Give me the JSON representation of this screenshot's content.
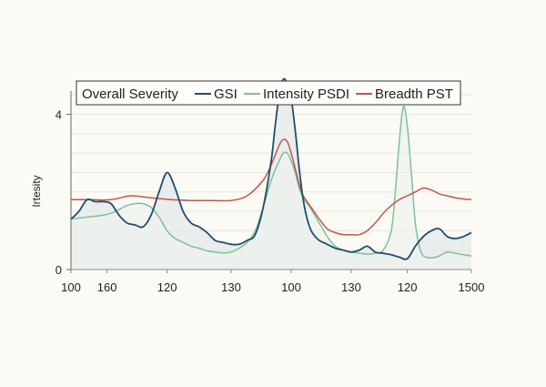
{
  "chart_data": {
    "type": "line",
    "title": "",
    "xlabel": "",
    "ylabel": "Irtesity",
    "ylim": [
      0,
      4.6
    ],
    "xlim": [
      0,
      100
    ],
    "grid": true,
    "legend_position": "top",
    "legend": {
      "title": "Overall Severity",
      "items": [
        {
          "label": "GSI",
          "color": "#1f4e6e"
        },
        {
          "label": "Intensity PSDI",
          "color": "#7fbf9f"
        },
        {
          "label": "Breadth PST",
          "color": "#c0574a"
        }
      ]
    },
    "y_ticks": [
      {
        "value": 0,
        "label": "0"
      },
      {
        "value": 4,
        "label": "4"
      }
    ],
    "x_ticks": [
      {
        "pos": 0,
        "label": "100"
      },
      {
        "pos": 9,
        "label": "160"
      },
      {
        "pos": 24,
        "label": "120"
      },
      {
        "pos": 40,
        "label": "130"
      },
      {
        "pos": 55,
        "label": "100"
      },
      {
        "pos": 70,
        "label": "130"
      },
      {
        "pos": 84,
        "label": "120"
      },
      {
        "pos": 100,
        "label": "1500"
      }
    ],
    "series": [
      {
        "name": "GSI",
        "color": "#1f4e6e",
        "fill": "#e3e8ea",
        "x": [
          0,
          2,
          4,
          6,
          8,
          10,
          12,
          14,
          16,
          18,
          20,
          22,
          24,
          26,
          28,
          30,
          32,
          34,
          36,
          38,
          40,
          42,
          44,
          46,
          48,
          50,
          51,
          52,
          53,
          54,
          55,
          56,
          57,
          58,
          59,
          60,
          61,
          62,
          64,
          66,
          68,
          70,
          72,
          74,
          76,
          78,
          80,
          82,
          84,
          86,
          88,
          90,
          92,
          94,
          96,
          98,
          100
        ],
        "y": [
          1.3,
          1.5,
          1.8,
          1.75,
          1.75,
          1.7,
          1.4,
          1.2,
          1.15,
          1.1,
          1.4,
          2.0,
          2.5,
          2.1,
          1.5,
          1.2,
          1.1,
          0.95,
          0.75,
          0.7,
          0.65,
          0.65,
          0.75,
          0.9,
          1.6,
          2.8,
          3.7,
          4.5,
          4.9,
          4.8,
          4.4,
          3.6,
          2.6,
          1.8,
          1.3,
          1.0,
          0.85,
          0.75,
          0.65,
          0.55,
          0.5,
          0.45,
          0.5,
          0.6,
          0.45,
          0.42,
          0.38,
          0.32,
          0.28,
          0.6,
          0.85,
          1.0,
          1.05,
          0.85,
          0.8,
          0.85,
          0.95
        ]
      },
      {
        "name": "Intensity PSDI",
        "color": "#7fbf9f",
        "fill": "#eef1ee",
        "x": [
          0,
          4,
          8,
          10,
          12,
          14,
          16,
          18,
          20,
          22,
          24,
          26,
          28,
          30,
          32,
          34,
          36,
          38,
          40,
          42,
          44,
          46,
          48,
          50,
          52,
          53,
          54,
          55,
          56,
          57,
          58,
          60,
          62,
          64,
          66,
          68,
          70,
          72,
          74,
          76,
          78,
          80,
          81,
          82,
          83,
          84,
          85,
          86,
          87,
          88,
          90,
          92,
          94,
          96,
          98,
          100
        ],
        "y": [
          1.3,
          1.35,
          1.4,
          1.45,
          1.55,
          1.65,
          1.7,
          1.7,
          1.6,
          1.35,
          1.0,
          0.8,
          0.7,
          0.6,
          0.55,
          0.48,
          0.45,
          0.43,
          0.45,
          0.55,
          0.7,
          1.0,
          1.6,
          2.3,
          2.8,
          3.0,
          3.0,
          2.8,
          2.5,
          2.1,
          1.85,
          1.55,
          1.2,
          0.85,
          0.6,
          0.5,
          0.45,
          0.42,
          0.4,
          0.42,
          0.5,
          1.0,
          2.0,
          3.3,
          4.2,
          3.7,
          2.5,
          1.2,
          0.6,
          0.35,
          0.3,
          0.35,
          0.45,
          0.42,
          0.38,
          0.35
        ]
      },
      {
        "name": "Breadth PST",
        "color": "#c0574a",
        "fill": "none",
        "x": [
          0,
          5,
          10,
          15,
          20,
          25,
          30,
          35,
          40,
          44,
          48,
          50,
          52,
          53,
          54,
          55,
          56,
          57,
          58,
          60,
          62,
          64,
          66,
          68,
          70,
          72,
          74,
          76,
          78,
          80,
          82,
          84,
          86,
          88,
          90,
          92,
          94,
          96,
          98,
          100
        ],
        "y": [
          1.8,
          1.8,
          1.8,
          1.9,
          1.85,
          1.8,
          1.78,
          1.78,
          1.78,
          1.9,
          2.3,
          2.7,
          3.2,
          3.35,
          3.3,
          3.0,
          2.6,
          2.2,
          1.9,
          1.6,
          1.3,
          1.05,
          0.95,
          0.9,
          0.9,
          0.9,
          1.0,
          1.2,
          1.45,
          1.65,
          1.8,
          1.9,
          2.0,
          2.1,
          2.05,
          1.95,
          1.9,
          1.85,
          1.82,
          1.8
        ]
      }
    ]
  }
}
